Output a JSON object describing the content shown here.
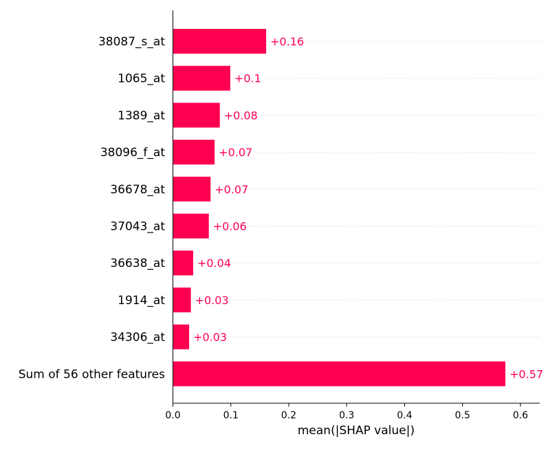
{
  "chart_data": {
    "type": "bar",
    "orientation": "horizontal",
    "categories": [
      "38087_s_at",
      "1065_at",
      "1389_at",
      "38096_f_at",
      "36678_at",
      "37043_at",
      "36638_at",
      "1914_at",
      "34306_at",
      "Sum of 56 other features"
    ],
    "values": [
      0.161,
      0.099,
      0.081,
      0.072,
      0.065,
      0.062,
      0.035,
      0.031,
      0.028,
      0.574
    ],
    "value_labels": [
      "+0.16",
      "+0.1",
      "+0.08",
      "+0.07",
      "+0.07",
      "+0.06",
      "+0.04",
      "+0.03",
      "+0.03",
      "+0.57"
    ],
    "xlabel": "mean(|SHAP value|)",
    "xlim": [
      0,
      0.632
    ],
    "xticks": [
      0.0,
      0.1,
      0.2,
      0.3,
      0.4,
      0.5,
      0.6
    ],
    "xtick_labels": [
      "0.0",
      "0.1",
      "0.2",
      "0.3",
      "0.4",
      "0.5",
      "0.6"
    ],
    "grid": "dotted horizontal guide lines per row",
    "colors": {
      "bar": "#ff0051",
      "value_label": "#ff0051",
      "axis": "#000000",
      "gridline": "#cccccc"
    }
  }
}
